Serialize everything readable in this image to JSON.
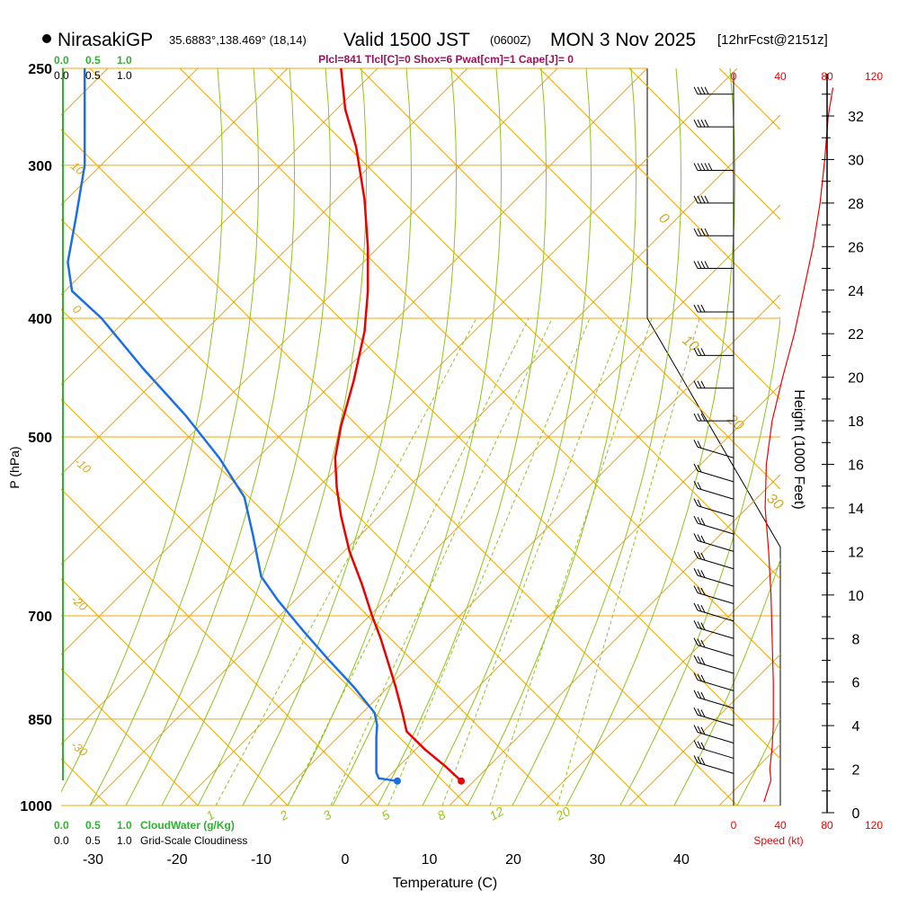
{
  "header": {
    "station": "NirasakiGP",
    "coords": "35.6883°,138.469° (18,14)",
    "valid_main": "Valid 1500 JST",
    "valid_z": "(0600Z)",
    "date": "MON 3 Nov 2025",
    "forecast": "[12hrFcst@2151z]",
    "indices": "Plcl=841 Tlcl[C]=0 Shox=6 Pwat[cm]=1 Cape[J]= 0"
  },
  "colors": {
    "temperature": "#ee0000",
    "dewpoint": "#1a6fe6",
    "isobar": "#f2a800",
    "dry_adiabat": "#f2a800",
    "moist_adiabat": "#8fc41f",
    "mixing_ratio": "#8fc41f",
    "cloud_scale": "#2db32d",
    "speed_axis": "#ee0000",
    "indices_text": "#a0105a"
  },
  "chart_data": {
    "type": "skew-t",
    "xlabel": "Temperature (C)",
    "ylabel": "P (hPa)",
    "y2label": "Height (1000 Feet)",
    "x_ticks": [
      "-30",
      "-20",
      "-10",
      "0",
      "10",
      "20",
      "30",
      "40"
    ],
    "x_tick_values": [
      -30,
      -20,
      -10,
      0,
      10,
      20,
      30,
      40
    ],
    "pressure_labels": [
      "250",
      "300",
      "400",
      "500",
      "700",
      "850",
      "1000"
    ],
    "pressure_values": [
      250,
      300,
      400,
      500,
      700,
      850,
      1000
    ],
    "height_ticks": [
      "0",
      "2",
      "4",
      "6",
      "8",
      "10",
      "12",
      "14",
      "16",
      "18",
      "20",
      "22",
      "24",
      "26",
      "28",
      "30",
      "32"
    ],
    "height_values": [
      0,
      2,
      4,
      6,
      8,
      10,
      12,
      14,
      16,
      18,
      20,
      22,
      24,
      26,
      28,
      30,
      32
    ],
    "dry_adiabat_labels": [
      "10",
      "0",
      "-10",
      "-20",
      "-30",
      "0",
      "10",
      "20",
      "30"
    ],
    "mixing_ratio_labels": [
      "1",
      "2",
      "3",
      "5",
      "8",
      "12",
      "20"
    ],
    "cloud_top_labels": [
      "0.0",
      "0.5",
      "1.0"
    ],
    "cloud_top_values": [
      0.0,
      0.5,
      1.0
    ],
    "cloud_bottom_green_labels": [
      "0.0",
      "0.5",
      "1.0"
    ],
    "cloud_water_label": "CloudWater (g/Kg)",
    "cloud_bottom_black_labels": [
      "0.0",
      "0.5",
      "1.0"
    ],
    "cloudiness_label": "Grid-Scale Cloudiness",
    "speed_ticks": [
      "0",
      "40",
      "80",
      "120"
    ],
    "speed_values": [
      0,
      40,
      80,
      120
    ],
    "speed_label": "Speed (kt)",
    "temperature_profile": [
      [
        955,
        13.8
      ],
      [
        930,
        12
      ],
      [
        900,
        9.5
      ],
      [
        870,
        7.3
      ],
      [
        840,
        6.8
      ],
      [
        800,
        6
      ],
      [
        760,
        5
      ],
      [
        730,
        4.2
      ],
      [
        700,
        3.2
      ],
      [
        660,
        2
      ],
      [
        620,
        0.5
      ],
      [
        580,
        -0.5
      ],
      [
        550,
        -1
      ],
      [
        520,
        -1.2
      ],
      [
        490,
        -0.5
      ],
      [
        450,
        1
      ],
      [
        410,
        2.3
      ],
      [
        380,
        2.7
      ],
      [
        350,
        2.7
      ],
      [
        320,
        2.3
      ],
      [
        290,
        1.3
      ],
      [
        270,
        0
      ],
      [
        250,
        -0.5
      ]
    ],
    "dewpoint_profile": [
      [
        955,
        6.2
      ],
      [
        950,
        4
      ],
      [
        940,
        3.7
      ],
      [
        920,
        3.7
      ],
      [
        880,
        3.7
      ],
      [
        860,
        3.8
      ],
      [
        840,
        3.5
      ],
      [
        800,
        1
      ],
      [
        760,
        -2
      ],
      [
        720,
        -5
      ],
      [
        680,
        -8
      ],
      [
        650,
        -10
      ],
      [
        600,
        -11
      ],
      [
        560,
        -12
      ],
      [
        520,
        -15
      ],
      [
        480,
        -19
      ],
      [
        440,
        -24
      ],
      [
        400,
        -29
      ],
      [
        380,
        -32.5
      ],
      [
        360,
        -33
      ],
      [
        330,
        -32
      ],
      [
        300,
        -31
      ],
      [
        270,
        -31
      ],
      [
        250,
        -31
      ]
    ],
    "parcel_point": [
      955,
      13.8
    ],
    "dew_point_marker": [
      955,
      6.2
    ],
    "wind_speed_profile": [
      [
        0.5,
        26
      ],
      [
        1,
        29
      ],
      [
        1.5,
        32
      ],
      [
        2,
        31
      ],
      [
        3,
        33
      ],
      [
        4,
        34
      ],
      [
        6,
        34
      ],
      [
        8,
        33
      ],
      [
        10,
        32
      ],
      [
        12,
        30
      ],
      [
        14,
        27
      ],
      [
        16,
        28
      ],
      [
        18,
        33
      ],
      [
        20,
        42
      ],
      [
        22,
        52
      ],
      [
        24,
        60
      ],
      [
        26,
        68
      ],
      [
        28,
        74
      ],
      [
        30,
        78
      ],
      [
        32,
        81
      ],
      [
        33.3,
        85
      ]
    ],
    "wind_barbs": [
      {
        "height_kft": 33,
        "speed_kt": 40
      },
      {
        "height_kft": 31.5,
        "speed_kt": 40
      },
      {
        "height_kft": 29.5,
        "speed_kt": 45
      },
      {
        "height_kft": 28,
        "speed_kt": 40
      },
      {
        "height_kft": 26.5,
        "speed_kt": 40
      },
      {
        "height_kft": 25,
        "speed_kt": 35
      },
      {
        "height_kft": 23,
        "speed_kt": 30
      },
      {
        "height_kft": 21,
        "speed_kt": 25
      },
      {
        "height_kft": 19.5,
        "speed_kt": 25
      },
      {
        "height_kft": 18,
        "speed_kt": 25
      },
      {
        "height_kft": 16.3,
        "speed_kt": 20
      },
      {
        "height_kft": 15.2,
        "speed_kt": 20
      },
      {
        "height_kft": 14.4,
        "speed_kt": 20
      },
      {
        "height_kft": 13.6,
        "speed_kt": 20
      },
      {
        "height_kft": 12.8,
        "speed_kt": 25
      },
      {
        "height_kft": 12,
        "speed_kt": 25
      },
      {
        "height_kft": 11.2,
        "speed_kt": 25
      },
      {
        "height_kft": 10.4,
        "speed_kt": 25
      },
      {
        "height_kft": 9.6,
        "speed_kt": 25
      },
      {
        "height_kft": 8.8,
        "speed_kt": 25
      },
      {
        "height_kft": 8,
        "speed_kt": 25
      },
      {
        "height_kft": 7.2,
        "speed_kt": 25
      },
      {
        "height_kft": 6.4,
        "speed_kt": 25
      },
      {
        "height_kft": 5.6,
        "speed_kt": 25
      },
      {
        "height_kft": 4.8,
        "speed_kt": 25
      },
      {
        "height_kft": 4,
        "speed_kt": 25
      },
      {
        "height_kft": 3.2,
        "speed_kt": 25
      },
      {
        "height_kft": 2.5,
        "speed_kt": 25
      },
      {
        "height_kft": 1.8,
        "speed_kt": 25
      }
    ]
  }
}
